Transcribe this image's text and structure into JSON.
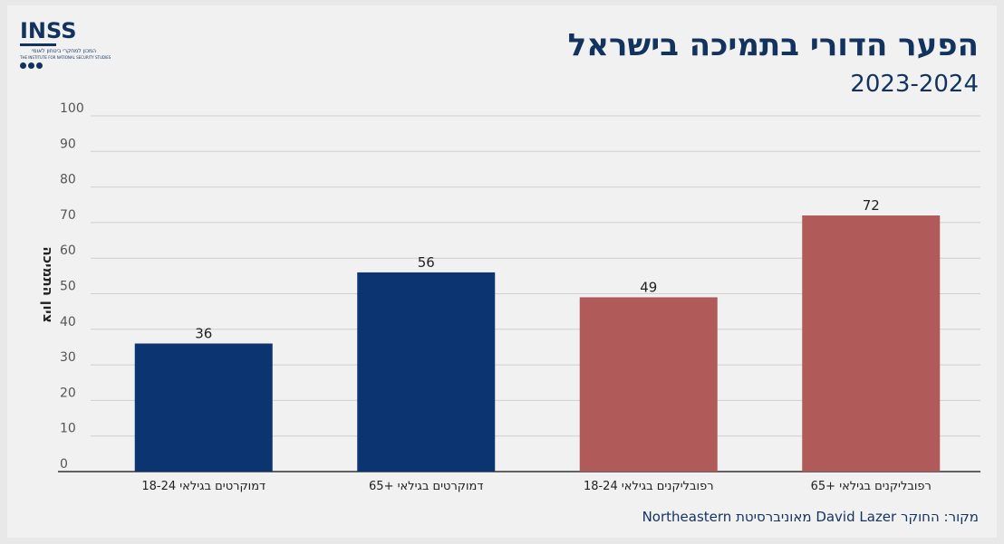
{
  "logo": {
    "word": "INSS",
    "subtitle_line1": "המכון למחקרי ביטחון לאומי",
    "subtitle_line2": "THE INSTITUTE FOR NATIONAL SECURITY STUDIES"
  },
  "header": {
    "title": "הפער הדורי בתמיכה בישראל",
    "subtitle": "2023-2024"
  },
  "source": "מקור: החוקר David Lazer מאוניברסיטת Northeastern",
  "colors": {
    "democrats": "#0b3470",
    "republicans": "#b05a5a",
    "text": "#13335f",
    "grid": "#cfcfcf"
  },
  "chart_data": {
    "type": "bar",
    "title": "הפער הדורי בתמיכה בישראל",
    "subtitle": "2023-2024",
    "ylabel": "ציון התמיכה",
    "xlabel": "",
    "ylim": [
      0,
      100
    ],
    "yticks": [
      0,
      10,
      20,
      30,
      40,
      50,
      60,
      70,
      80,
      90,
      100
    ],
    "grid": true,
    "categories": [
      "דמוקרטים בגילאי 18-24",
      "דמוקרטים בגילאי +65",
      "רפובליקנים בגילאי 18-24",
      "רפובליקנים בגילאי +65"
    ],
    "values": [
      36,
      56,
      49,
      72
    ],
    "bar_colors": [
      "#0b3470",
      "#0b3470",
      "#b05a5a",
      "#b05a5a"
    ]
  }
}
